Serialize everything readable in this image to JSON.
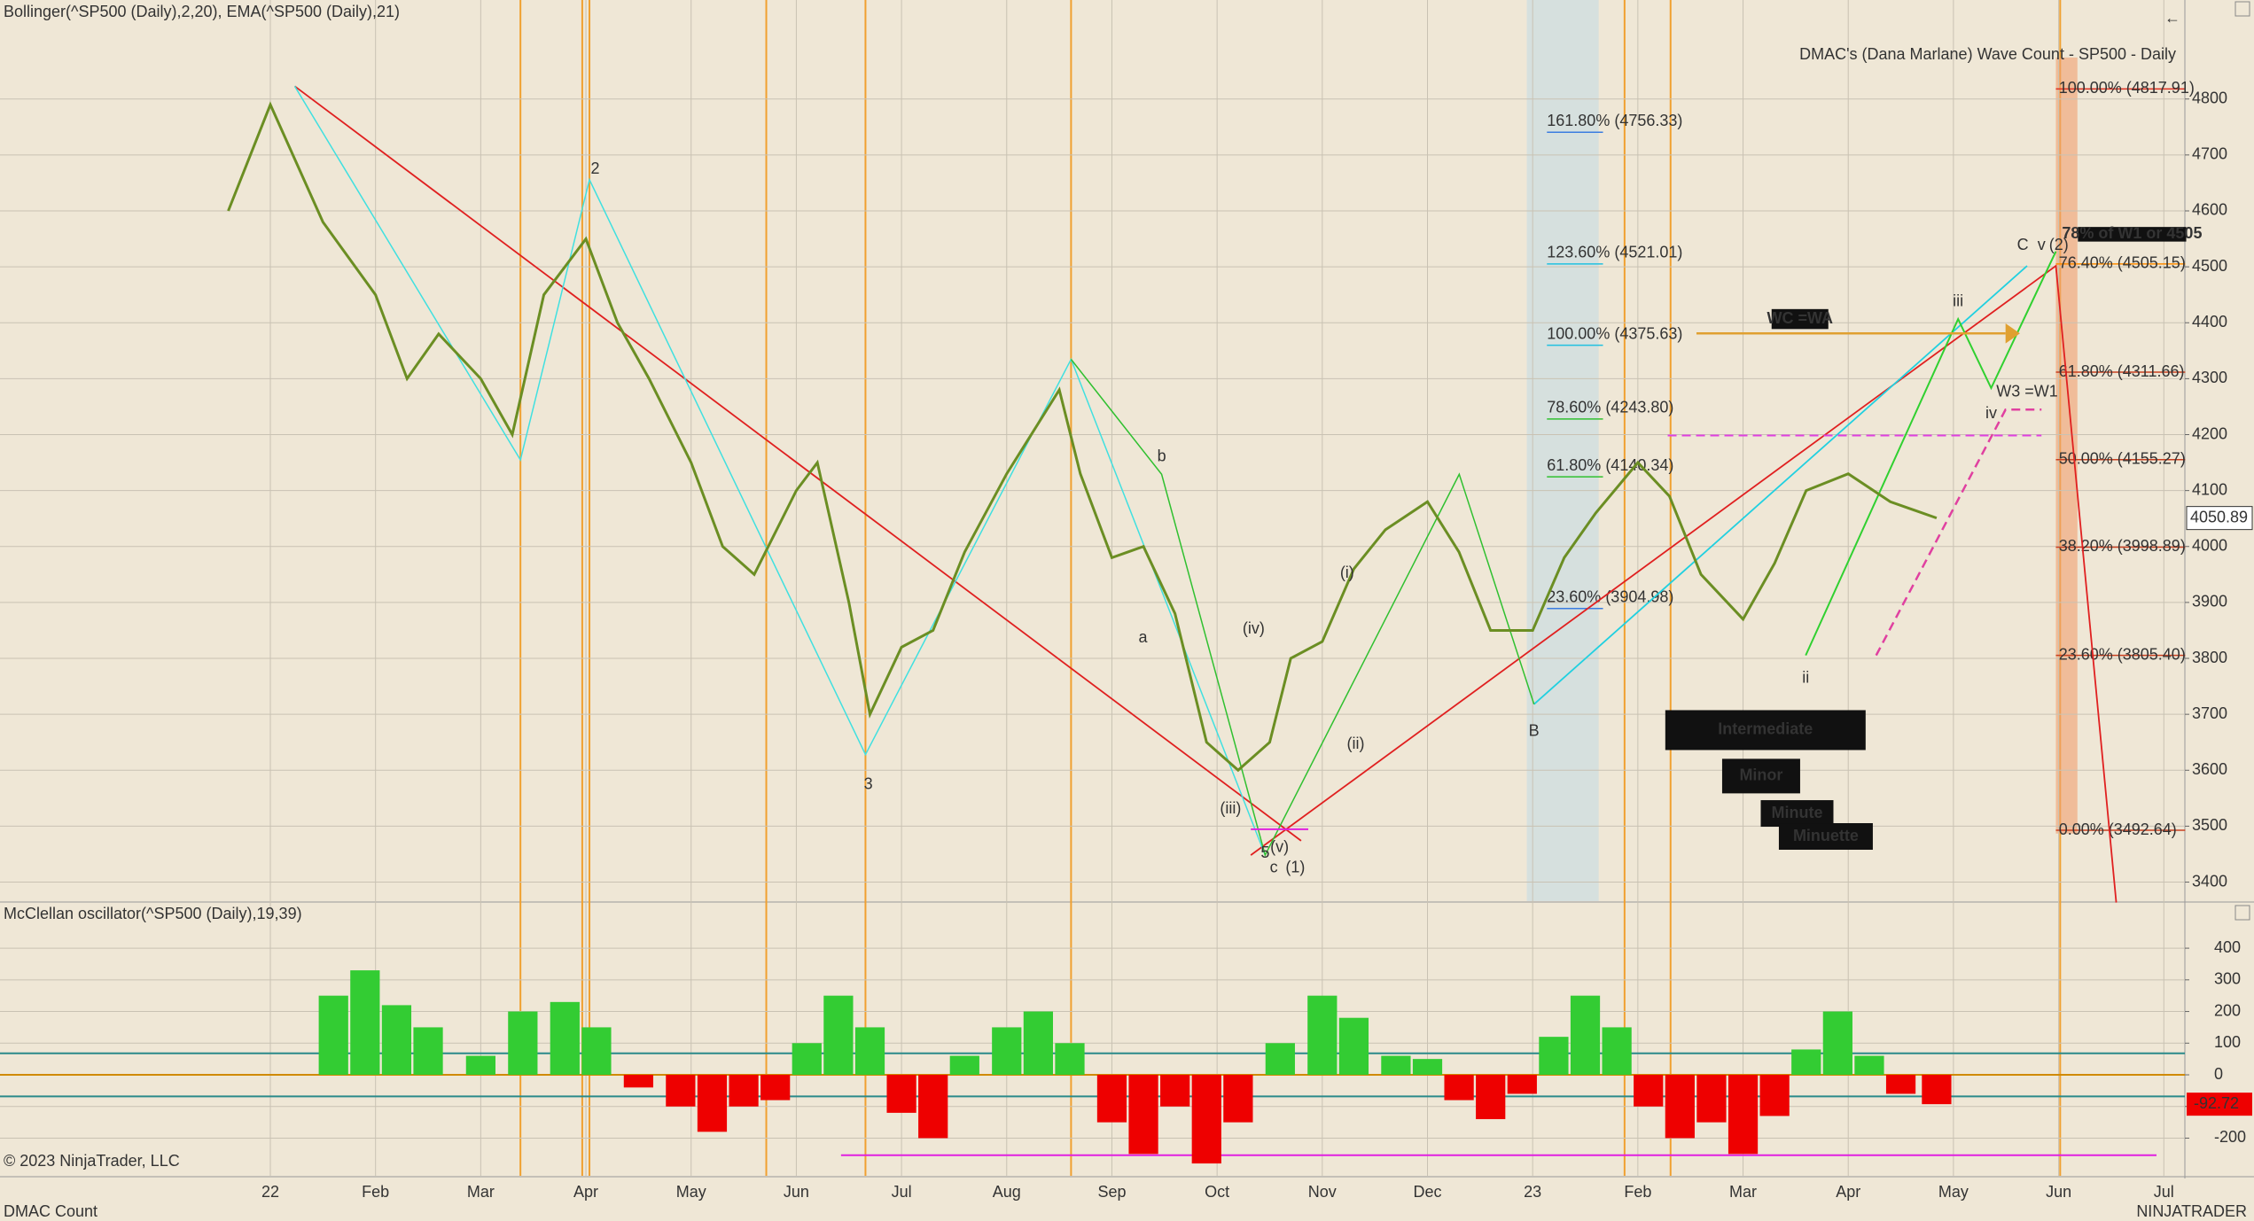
{
  "chart_data": [
    {
      "type": "line",
      "title": "DMAC's (Dana Marlane) Wave Count - SP500 - Daily",
      "indicator_label": "Bollinger(^SP500 (Daily),2,20), EMA(^SP500 (Daily),21)",
      "x": [
        -0.4,
        0,
        0.5,
        1.0,
        1.3,
        1.6,
        2.0,
        2.3,
        2.6,
        3.0,
        3.3,
        3.6,
        4.0,
        4.3,
        4.6,
        5.0,
        5.2,
        5.5,
        5.7,
        6.0,
        6.3,
        6.6,
        7.0,
        7.5,
        7.7,
        8.0,
        8.3,
        8.6,
        8.9,
        9.2,
        9.5,
        9.7,
        10.0,
        10.3,
        10.6,
        11.0,
        11.3,
        11.6,
        12.0,
        12.3,
        12.6,
        13.0,
        13.3,
        13.6,
        14.0,
        14.3,
        14.6,
        15.0,
        15.4,
        15.84
      ],
      "values": [
        4600,
        4790,
        4580,
        4450,
        4300,
        4380,
        4300,
        4200,
        4450,
        4550,
        4400,
        4300,
        4150,
        4000,
        3950,
        4100,
        4150,
        3900,
        3700,
        3820,
        3850,
        3990,
        4130,
        4280,
        4130,
        3980,
        4000,
        3880,
        3650,
        3600,
        3650,
        3800,
        3830,
        3960,
        4030,
        4080,
        3990,
        3850,
        3850,
        3980,
        4060,
        4150,
        4090,
        3950,
        3870,
        3970,
        4100,
        4130,
        4080,
        4050.89
      ],
      "color": "#6b8e23",
      "last_value": 4050.89,
      "xlim": [
        -2.57,
        18.2
      ],
      "xticks": [
        {
          "value": 0,
          "label": "22"
        },
        {
          "value": 1,
          "label": "Feb"
        },
        {
          "value": 2,
          "label": "Mar"
        },
        {
          "value": 3,
          "label": "Apr"
        },
        {
          "value": 4,
          "label": "May"
        },
        {
          "value": 5,
          "label": "Jun"
        },
        {
          "value": 6,
          "label": "Jul"
        },
        {
          "value": 7,
          "label": "Aug"
        },
        {
          "value": 8,
          "label": "Sep"
        },
        {
          "value": 9,
          "label": "Oct"
        },
        {
          "value": 10,
          "label": "Nov"
        },
        {
          "value": 11,
          "label": "Dec"
        },
        {
          "value": 12,
          "label": "23"
        },
        {
          "value": 13,
          "label": "Feb"
        },
        {
          "value": 14,
          "label": "Mar"
        },
        {
          "value": 15,
          "label": "Apr"
        },
        {
          "value": 16,
          "label": "May"
        },
        {
          "value": 17,
          "label": "Jun"
        },
        {
          "value": 18,
          "label": "Jul"
        }
      ],
      "ylim": [
        3366,
        4977
      ],
      "yticks": [
        3400,
        3500,
        3600,
        3700,
        3800,
        3900,
        4000,
        4100,
        4200,
        4300,
        4400,
        4500,
        4600,
        4700,
        4800
      ],
      "grid": true,
      "fib_levels_right": [
        {
          "value": 4817.91,
          "label": "100.00% (4817.91)",
          "color": "#e03020"
        },
        {
          "value": 4505.15,
          "label": "76.40% (4505.15)",
          "color": "#ff8c00"
        },
        {
          "value": 4311.66,
          "label": "61.80% (4311.66)",
          "color": "#c84020"
        },
        {
          "value": 4155.27,
          "label": "50.00% (4155.27)",
          "color": "#c84020"
        },
        {
          "value": 3998.89,
          "label": "38.20% (3998.89)",
          "color": "#c84020"
        },
        {
          "value": 3805.4,
          "label": "23.60% (3805.40)",
          "color": "#c84020"
        },
        {
          "value": 3492.64,
          "label": "0.00% (3492.64)",
          "color": "#c84020"
        }
      ],
      "fib_levels_left": [
        {
          "value": 4756.33,
          "label": "161.80% (4756.33)",
          "color": "#3a7ce0"
        },
        {
          "value": 4521.01,
          "label": "123.60% (4521.01)",
          "color": "#20c0e0"
        },
        {
          "value": 4375.63,
          "label": "100.00% (4375.63)",
          "color": "#20c0e0"
        },
        {
          "value": 4243.8,
          "label": "78.60% (4243.80)",
          "color": "#30c030"
        },
        {
          "value": 4140.34,
          "label": "61.80% (4140.34)",
          "color": "#30c030"
        },
        {
          "value": 3904.98,
          "label": "23.60% (3904.98)",
          "color": "#3a7ce0"
        }
      ],
      "annotations": [
        {
          "text": "Intermediate",
          "color": "#ff2020"
        },
        {
          "text": "Minor",
          "color": "#20e0ff"
        },
        {
          "text": "Minute",
          "color": "#20e020"
        },
        {
          "text": "Minuette",
          "color": "#ff40ff"
        },
        {
          "text": "WC =WA",
          "color": "#20e0ff"
        },
        {
          "text": "W3 =W1",
          "color": "#30d030"
        },
        {
          "text": "78% of W1 or 4505",
          "color": "#ff3030"
        },
        {
          "text": "C",
          "color": "#20c0e0"
        },
        {
          "text": "v",
          "color": "#30c030"
        },
        {
          "text": "(2)",
          "color": "#e02020"
        },
        {
          "text": "(1)",
          "color": "#e02020"
        },
        {
          "text": "c",
          "color": "#30c030"
        },
        {
          "text": "5",
          "color": "#20c0e0"
        },
        {
          "text": "B",
          "color": "#20c0e0"
        },
        {
          "text": "iii",
          "color": "#30c030"
        },
        {
          "text": "iv",
          "color": "#30c030"
        },
        {
          "text": "ii",
          "color": "#30c030"
        },
        {
          "text": "2",
          "color": "#20c0e0"
        },
        {
          "text": "3",
          "color": "#20c0e0"
        },
        {
          "text": "b",
          "color": "#30c030"
        },
        {
          "text": "a",
          "color": "#30c030"
        },
        {
          "text": "(i)",
          "color": "#f06090"
        },
        {
          "text": "(ii)",
          "color": "#f06090"
        },
        {
          "text": "(iv)",
          "color": "#f06090"
        },
        {
          "text": "(iii)",
          "color": "#f06090"
        },
        {
          "text": "(v)",
          "color": "#f06090"
        }
      ],
      "copyright": "© 2023 NinjaTrader, LLC",
      "footer": "DMAC Count",
      "logo": "NINJATRADER"
    },
    {
      "type": "bar",
      "indicator_label": "McClellan oscillator(^SP500 (Daily),19,39)",
      "x": [
        0.6,
        0.9,
        1.2,
        1.5,
        2.0,
        2.4,
        2.8,
        3.1,
        3.5,
        3.9,
        4.2,
        4.5,
        4.8,
        5.1,
        5.4,
        5.7,
        6.0,
        6.3,
        6.6,
        7.0,
        7.3,
        7.6,
        8.0,
        8.3,
        8.6,
        8.9,
        9.2,
        9.6,
        10.0,
        10.3,
        10.7,
        11.0,
        11.3,
        11.6,
        11.9,
        12.2,
        12.5,
        12.8,
        13.1,
        13.4,
        13.7,
        14.0,
        14.3,
        14.6,
        14.9,
        15.2,
        15.5,
        15.84
      ],
      "values": [
        250,
        330,
        220,
        150,
        60,
        200,
        230,
        150,
        -40,
        -100,
        -180,
        -100,
        -80,
        100,
        250,
        150,
        -120,
        -200,
        60,
        150,
        200,
        100,
        -150,
        -250,
        -100,
        -280,
        -150,
        100,
        250,
        180,
        60,
        50,
        -80,
        -140,
        -60,
        120,
        250,
        150,
        -100,
        -200,
        -150,
        -250,
        -130,
        80,
        200,
        60,
        -60,
        -92.72
      ],
      "positive_color": "#33cc33",
      "negative_color": "#ee0000",
      "last_value": -92.72,
      "xlim": [
        -2.57,
        18.2
      ],
      "ylim": [
        -319,
        543
      ],
      "yticks": [
        -200,
        -100,
        0,
        100,
        200,
        300,
        400
      ],
      "reference_lines": [
        {
          "value": 68,
          "color": "#2a8a8a"
        },
        {
          "value": 0,
          "color": "#d08a00"
        },
        {
          "value": -68,
          "color": "#2a8a8a"
        },
        {
          "value": -254,
          "color": "#e020e0"
        }
      ]
    }
  ]
}
